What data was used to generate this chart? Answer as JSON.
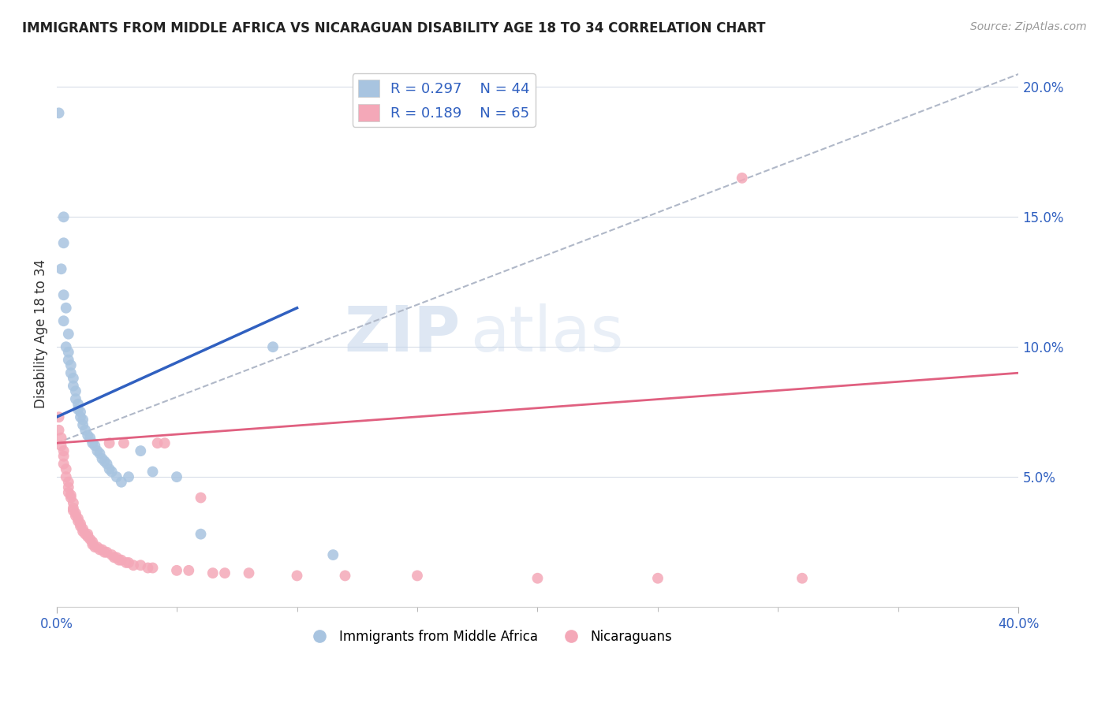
{
  "title": "IMMIGRANTS FROM MIDDLE AFRICA VS NICARAGUAN DISABILITY AGE 18 TO 34 CORRELATION CHART",
  "source": "Source: ZipAtlas.com",
  "ylabel": "Disability Age 18 to 34",
  "xlim": [
    0.0,
    0.4
  ],
  "ylim": [
    0.0,
    0.21
  ],
  "xticks_major": [
    0.0,
    0.4
  ],
  "xticks_minor": [
    0.05,
    0.1,
    0.15,
    0.2,
    0.25,
    0.3,
    0.35
  ],
  "yticks": [
    0.05,
    0.1,
    0.15,
    0.2
  ],
  "yticklabels": [
    "5.0%",
    "10.0%",
    "15.0%",
    "20.0%"
  ],
  "blue_R": 0.297,
  "blue_N": 44,
  "pink_R": 0.189,
  "pink_N": 65,
  "blue_color": "#a8c4e0",
  "pink_color": "#f4a8b8",
  "blue_line_color": "#3060c0",
  "pink_line_color": "#e06080",
  "dashed_line_color": "#b0b8c8",
  "watermark": "ZIPatlas",
  "legend_text_color": "#3060c0",
  "blue_line_x": [
    0.0,
    0.1
  ],
  "blue_line_y": [
    0.073,
    0.115
  ],
  "pink_line_x": [
    0.0,
    0.4
  ],
  "pink_line_y": [
    0.063,
    0.09
  ],
  "dashed_line_x": [
    0.0,
    0.4
  ],
  "dashed_line_y": [
    0.063,
    0.205
  ],
  "blue_points": [
    [
      0.001,
      0.19
    ],
    [
      0.003,
      0.15
    ],
    [
      0.003,
      0.14
    ],
    [
      0.002,
      0.13
    ],
    [
      0.003,
      0.12
    ],
    [
      0.004,
      0.115
    ],
    [
      0.003,
      0.11
    ],
    [
      0.005,
      0.105
    ],
    [
      0.004,
      0.1
    ],
    [
      0.005,
      0.098
    ],
    [
      0.005,
      0.095
    ],
    [
      0.006,
      0.093
    ],
    [
      0.006,
      0.09
    ],
    [
      0.007,
      0.088
    ],
    [
      0.007,
      0.085
    ],
    [
      0.008,
      0.083
    ],
    [
      0.008,
      0.08
    ],
    [
      0.009,
      0.078
    ],
    [
      0.009,
      0.076
    ],
    [
      0.01,
      0.075
    ],
    [
      0.01,
      0.073
    ],
    [
      0.011,
      0.072
    ],
    [
      0.011,
      0.07
    ],
    [
      0.012,
      0.068
    ],
    [
      0.013,
      0.066
    ],
    [
      0.014,
      0.065
    ],
    [
      0.015,
      0.063
    ],
    [
      0.016,
      0.062
    ],
    [
      0.017,
      0.06
    ],
    [
      0.018,
      0.059
    ],
    [
      0.019,
      0.057
    ],
    [
      0.02,
      0.056
    ],
    [
      0.021,
      0.055
    ],
    [
      0.022,
      0.053
    ],
    [
      0.023,
      0.052
    ],
    [
      0.025,
      0.05
    ],
    [
      0.027,
      0.048
    ],
    [
      0.03,
      0.05
    ],
    [
      0.035,
      0.06
    ],
    [
      0.04,
      0.052
    ],
    [
      0.05,
      0.05
    ],
    [
      0.06,
      0.028
    ],
    [
      0.09,
      0.1
    ],
    [
      0.115,
      0.02
    ]
  ],
  "pink_points": [
    [
      0.001,
      0.073
    ],
    [
      0.001,
      0.068
    ],
    [
      0.002,
      0.065
    ],
    [
      0.002,
      0.062
    ],
    [
      0.003,
      0.06
    ],
    [
      0.003,
      0.058
    ],
    [
      0.003,
      0.055
    ],
    [
      0.004,
      0.053
    ],
    [
      0.004,
      0.05
    ],
    [
      0.005,
      0.048
    ],
    [
      0.005,
      0.046
    ],
    [
      0.005,
      0.044
    ],
    [
      0.006,
      0.043
    ],
    [
      0.006,
      0.042
    ],
    [
      0.007,
      0.04
    ],
    [
      0.007,
      0.038
    ],
    [
      0.007,
      0.037
    ],
    [
      0.008,
      0.036
    ],
    [
      0.008,
      0.035
    ],
    [
      0.009,
      0.034
    ],
    [
      0.009,
      0.033
    ],
    [
      0.01,
      0.032
    ],
    [
      0.01,
      0.031
    ],
    [
      0.011,
      0.03
    ],
    [
      0.011,
      0.029
    ],
    [
      0.012,
      0.028
    ],
    [
      0.013,
      0.028
    ],
    [
      0.013,
      0.027
    ],
    [
      0.014,
      0.026
    ],
    [
      0.015,
      0.025
    ],
    [
      0.015,
      0.024
    ],
    [
      0.016,
      0.023
    ],
    [
      0.017,
      0.023
    ],
    [
      0.018,
      0.022
    ],
    [
      0.019,
      0.022
    ],
    [
      0.02,
      0.021
    ],
    [
      0.021,
      0.021
    ],
    [
      0.022,
      0.063
    ],
    [
      0.023,
      0.02
    ],
    [
      0.024,
      0.019
    ],
    [
      0.025,
      0.019
    ],
    [
      0.026,
      0.018
    ],
    [
      0.027,
      0.018
    ],
    [
      0.028,
      0.063
    ],
    [
      0.029,
      0.017
    ],
    [
      0.03,
      0.017
    ],
    [
      0.032,
      0.016
    ],
    [
      0.035,
      0.016
    ],
    [
      0.038,
      0.015
    ],
    [
      0.04,
      0.015
    ],
    [
      0.042,
      0.063
    ],
    [
      0.045,
      0.063
    ],
    [
      0.05,
      0.014
    ],
    [
      0.055,
      0.014
    ],
    [
      0.06,
      0.042
    ],
    [
      0.065,
      0.013
    ],
    [
      0.07,
      0.013
    ],
    [
      0.08,
      0.013
    ],
    [
      0.1,
      0.012
    ],
    [
      0.12,
      0.012
    ],
    [
      0.15,
      0.012
    ],
    [
      0.2,
      0.011
    ],
    [
      0.25,
      0.011
    ],
    [
      0.285,
      0.165
    ],
    [
      0.31,
      0.011
    ]
  ]
}
